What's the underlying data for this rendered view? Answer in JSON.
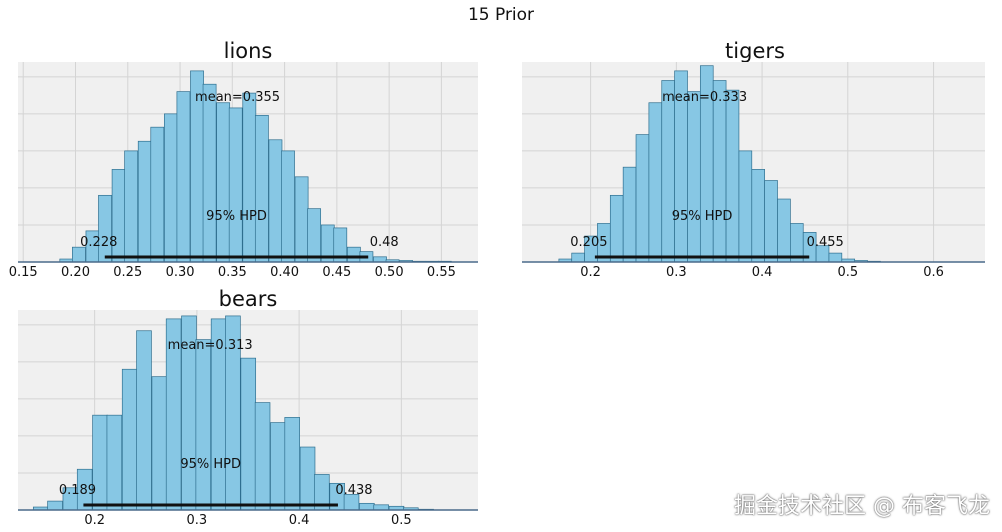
{
  "figure_title": "15 Prior",
  "watermark": "掘金技术社区 @ 布客飞龙",
  "chart_data": [
    {
      "type": "bar",
      "title": "lions",
      "xlim": [
        0.145,
        0.585
      ],
      "xticks": [
        0.15,
        0.2,
        0.25,
        0.3,
        0.35,
        0.4,
        0.45,
        0.5,
        0.55
      ],
      "xtick_labels": [
        "0.15",
        "0.20",
        "0.25",
        "0.30",
        "0.35",
        "0.40",
        "0.45",
        "0.50",
        "0.55"
      ],
      "ylim": [
        0,
        270
      ],
      "grid": true,
      "bin_width": 0.0125,
      "bin_starts": [
        0.185,
        0.197,
        0.21,
        0.222,
        0.235,
        0.247,
        0.26,
        0.272,
        0.285,
        0.297,
        0.31,
        0.322,
        0.335,
        0.347,
        0.36,
        0.372,
        0.385,
        0.397,
        0.41,
        0.422,
        0.435,
        0.447,
        0.46,
        0.472,
        0.485,
        0.497,
        0.51,
        0.522,
        0.535,
        0.547
      ],
      "counts": [
        4,
        20,
        42,
        90,
        125,
        150,
        163,
        182,
        200,
        230,
        258,
        240,
        215,
        208,
        228,
        198,
        165,
        150,
        115,
        72,
        50,
        46,
        20,
        14,
        7,
        3,
        2,
        1,
        1,
        1
      ],
      "mean_label": "mean=0.355",
      "hpd": [
        0.228,
        0.48
      ],
      "hpd_left_label": "0.228",
      "hpd_right_label": "0.48",
      "hpd_label": "95% HPD"
    },
    {
      "type": "bar",
      "title": "tigers",
      "xlim": [
        0.12,
        0.66
      ],
      "xticks": [
        0.2,
        0.3,
        0.4,
        0.5,
        0.6
      ],
      "xtick_labels": [
        "0.2",
        "0.3",
        "0.4",
        "0.5",
        "0.6"
      ],
      "ylim": [
        0,
        270
      ],
      "grid": true,
      "bin_width": 0.015,
      "bin_starts": [
        0.163,
        0.178,
        0.193,
        0.208,
        0.223,
        0.238,
        0.253,
        0.268,
        0.283,
        0.298,
        0.313,
        0.328,
        0.343,
        0.358,
        0.373,
        0.388,
        0.403,
        0.418,
        0.433,
        0.448,
        0.463,
        0.478,
        0.493,
        0.508,
        0.523
      ],
      "counts": [
        4,
        12,
        35,
        52,
        90,
        128,
        172,
        215,
        245,
        258,
        230,
        265,
        245,
        232,
        150,
        125,
        110,
        85,
        52,
        40,
        22,
        12,
        4,
        2,
        1
      ],
      "mean_label": "mean=0.333",
      "hpd": [
        0.205,
        0.455
      ],
      "hpd_left_label": "0.205",
      "hpd_right_label": "0.455",
      "hpd_label": "95% HPD"
    },
    {
      "type": "bar",
      "title": "bears",
      "xlim": [
        0.125,
        0.575
      ],
      "xticks": [
        0.2,
        0.3,
        0.4,
        0.5
      ],
      "xtick_labels": [
        "0.2",
        "0.3",
        "0.4",
        "0.5"
      ],
      "ylim": [
        0,
        270
      ],
      "grid": true,
      "bin_width": 0.0145,
      "bin_starts": [
        0.14,
        0.154,
        0.169,
        0.183,
        0.198,
        0.212,
        0.227,
        0.241,
        0.256,
        0.27,
        0.285,
        0.299,
        0.314,
        0.328,
        0.343,
        0.357,
        0.372,
        0.386,
        0.401,
        0.415,
        0.43,
        0.444,
        0.459,
        0.473,
        0.488,
        0.502,
        0.517
      ],
      "counts": [
        4,
        12,
        30,
        55,
        128,
        128,
        190,
        242,
        180,
        258,
        262,
        230,
        258,
        262,
        205,
        145,
        118,
        125,
        85,
        48,
        36,
        21,
        9,
        7,
        5,
        3,
        1
      ],
      "mean_label": "mean=0.313",
      "hpd": [
        0.189,
        0.438
      ],
      "hpd_left_label": "0.189",
      "hpd_right_label": "0.438",
      "hpd_label": "95% HPD"
    }
  ]
}
